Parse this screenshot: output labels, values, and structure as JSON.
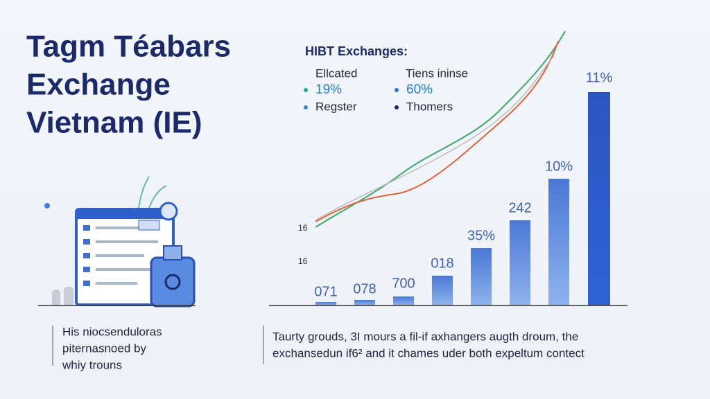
{
  "header": {
    "title_lines": [
      "Tagm Téabars",
      "Exchange",
      "Vietnam (IE)"
    ]
  },
  "panel": {
    "heading": "HIBT Exchanges:",
    "legend": [
      {
        "label": "Ellcated",
        "value": "19%"
      },
      {
        "label": "Tiens ininse",
        "value": "60%"
      }
    ],
    "legend_items": [
      "Regster",
      "Thomers"
    ],
    "axis_labels": [
      "16",
      "16"
    ],
    "bar_labels": [
      "071",
      "078",
      "700",
      "018",
      "35%",
      "242",
      "10%",
      "11%"
    ]
  },
  "captions": {
    "left": [
      "His niocsendulorаs",
      "piternasnoed by",
      "whiy trouns"
    ],
    "right": [
      "Taurty grouds, 3I mours a fil-if axhangers augth droum, the",
      "exchansedun if6² and it chames uder both expeltum contect"
    ]
  }
}
